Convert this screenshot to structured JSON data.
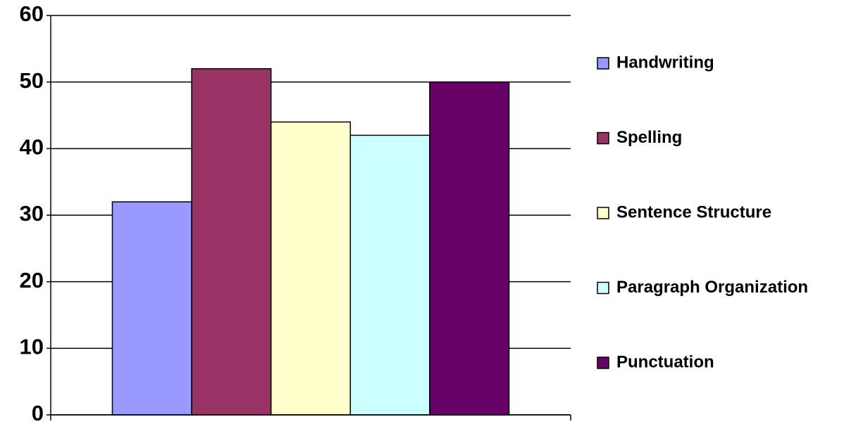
{
  "chart_data": {
    "type": "bar",
    "categories": [
      null
    ],
    "series": [
      {
        "name": "Handwriting",
        "color": "#9999ff",
        "values": [
          32
        ]
      },
      {
        "name": "Spelling",
        "color": "#993366",
        "values": [
          52
        ]
      },
      {
        "name": "Sentence Structure",
        "color": "#ffffcc",
        "values": [
          44
        ]
      },
      {
        "name": "Paragraph Organization",
        "color": "#ccffff",
        "values": [
          42
        ]
      },
      {
        "name": "Punctuation",
        "color": "#660066",
        "values": [
          50
        ]
      }
    ],
    "ylim": [
      0,
      60
    ],
    "yticks": [
      0,
      10,
      20,
      30,
      40,
      50,
      60
    ],
    "grid": true,
    "legend": "right"
  }
}
